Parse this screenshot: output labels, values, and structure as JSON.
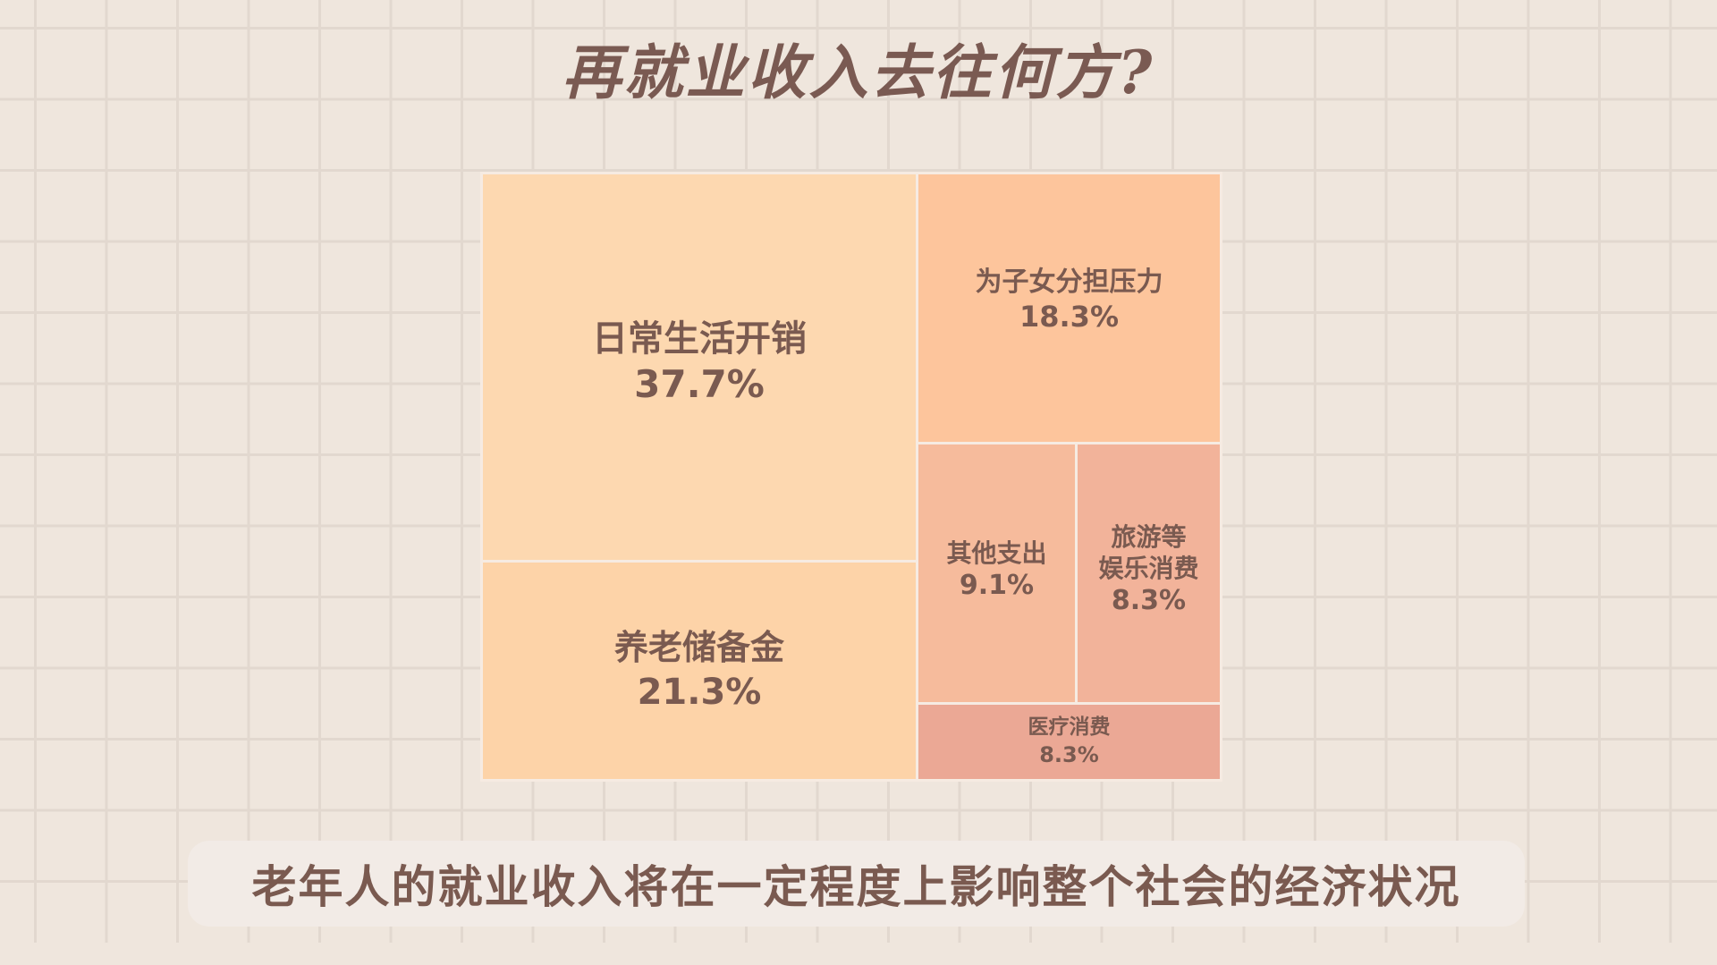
{
  "title": "再就业收入去往何方?",
  "caption": "老年人的就业收入将在一定程度上影响整个社会的经济状况",
  "colors": {
    "background": "#efe6dd",
    "text": "#7a5a50",
    "tile_daily": "#fdd8b0",
    "tile_pension": "#fdd3a8",
    "tile_children": "#fdc59c",
    "tile_other": "#f6bb9c",
    "tile_travel": "#f2b39a",
    "tile_medical": "#eba895"
  },
  "chart_data": {
    "type": "treemap",
    "title": "再就业收入去往何方?",
    "unit": "%",
    "items": [
      {
        "label": "日常生活开销",
        "value": 37.7,
        "value_text": "37.7%"
      },
      {
        "label": "养老储备金",
        "value": 21.3,
        "value_text": "21.3%"
      },
      {
        "label": "为子女分担压力",
        "value": 18.3,
        "value_text": "18.3%"
      },
      {
        "label": "其他支出",
        "value": 9.1,
        "value_text": "9.1%"
      },
      {
        "label": "旅游等 娱乐消费",
        "line1": "旅游等",
        "line2": "娱乐消费",
        "value": 8.3,
        "value_text": "8.3%"
      },
      {
        "label": "医疗消费",
        "value": 8.3,
        "value_text": "8.3%"
      }
    ]
  }
}
